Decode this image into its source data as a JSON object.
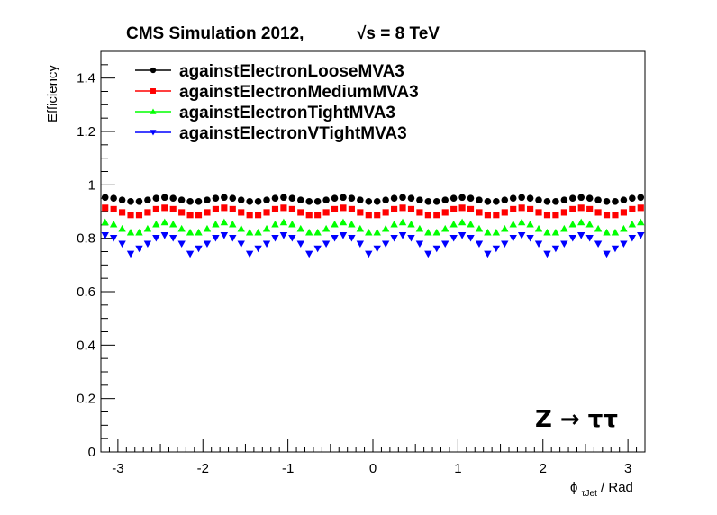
{
  "chart_data": {
    "type": "scatter",
    "title": "CMS Simulation 2012,",
    "title_energy": "√s = 8 TeV",
    "xlabel": "ϕ",
    "xlabel_sub": "τJet",
    "xlabel_unit": " / Rad",
    "ylabel": "Efficiency",
    "annotation": "Z → ττ",
    "xlim": [
      -3.2,
      3.2
    ],
    "ylim": [
      0,
      1.5
    ],
    "xticks": [
      -3,
      -2,
      -1,
      0,
      1,
      2,
      3
    ],
    "xtick_labels": [
      "-3",
      "-2",
      "-1",
      "0",
      "1",
      "2",
      "3"
    ],
    "yticks": [
      0,
      0.2,
      0.4,
      0.6,
      0.8,
      1,
      1.2,
      1.4
    ],
    "ytick_labels": [
      "0",
      "0.2",
      "0.4",
      "0.6",
      "0.8",
      "1",
      "1.2",
      "1.4"
    ],
    "n_bins": 64,
    "legend_position": "top-left",
    "series": [
      {
        "name": "againstElectronLooseMVA3",
        "color": "#000000",
        "marker": "circle",
        "mean": 0.945,
        "amplitude": 0.008
      },
      {
        "name": "againstElectronMediumMVA3",
        "color": "#ff0000",
        "marker": "square",
        "mean": 0.9,
        "amplitude": 0.014
      },
      {
        "name": "againstElectronTightMVA3",
        "color": "#00ff00",
        "marker": "triangle-up",
        "mean": 0.84,
        "amplitude": 0.02
      },
      {
        "name": "againstElectronVTightMVA3",
        "color": "#0000ff",
        "marker": "triangle-down",
        "mean": 0.785,
        "amplitude": 0.026
      }
    ]
  }
}
